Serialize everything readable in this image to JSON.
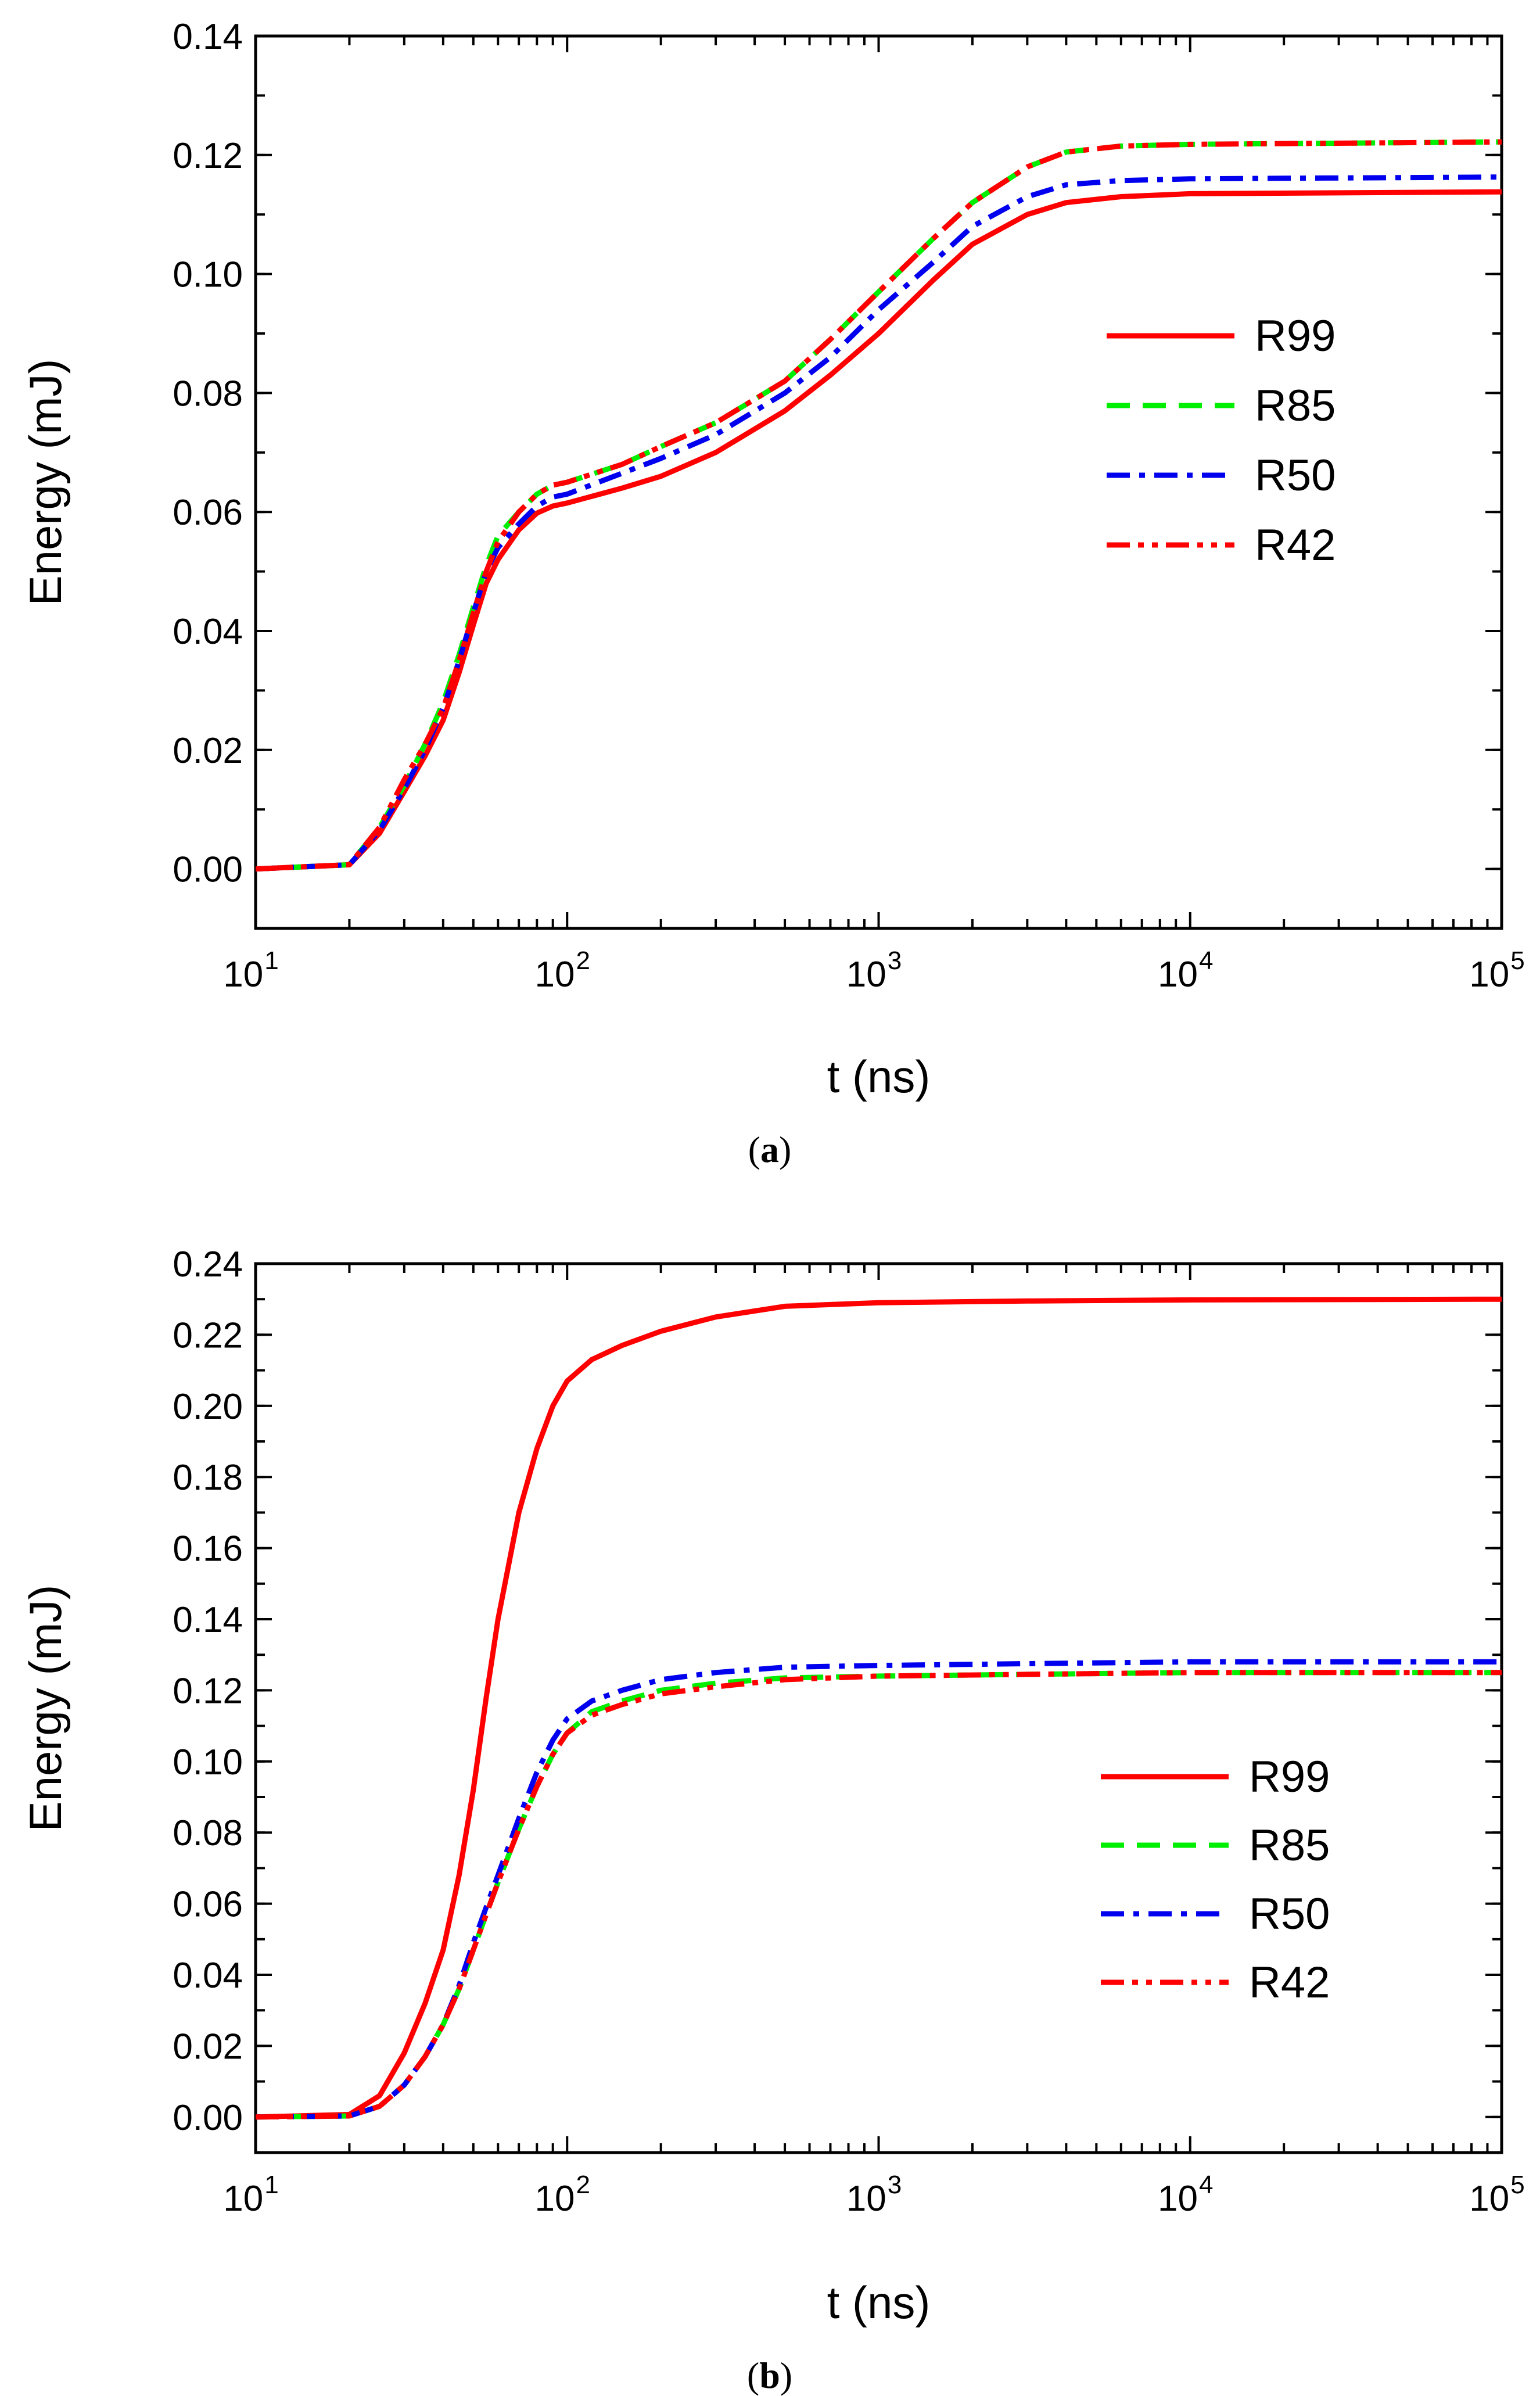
{
  "chart_data": [
    {
      "type": "line",
      "caption_letter": "a",
      "xlabel": "t (ns)",
      "ylabel": "Energy (mJ)",
      "xscale": "log",
      "xlim": [
        10,
        100000
      ],
      "ylim": [
        -0.01,
        0.14
      ],
      "xticks": [
        1,
        2,
        3,
        4,
        5
      ],
      "x_tick_base": "10",
      "yticks": [
        "0.00",
        "0.02",
        "0.04",
        "0.06",
        "0.08",
        "0.10",
        "0.12",
        "0.14"
      ],
      "legend_position": "right-middle",
      "series": [
        {
          "name": "R99",
          "color": "#ff0000",
          "style": "solid",
          "x": [
            10,
            20,
            25,
            30,
            35,
            40,
            45,
            50,
            55,
            60,
            70,
            80,
            90,
            100,
            150,
            200,
            300,
            500,
            700,
            1000,
            1500,
            2000,
            3000,
            4000,
            6000,
            10000,
            100000
          ],
          "y": [
            0.0,
            0.0007,
            0.006,
            0.013,
            0.019,
            0.025,
            0.033,
            0.041,
            0.048,
            0.052,
            0.057,
            0.0598,
            0.061,
            0.0615,
            0.064,
            0.066,
            0.07,
            0.077,
            0.083,
            0.09,
            0.099,
            0.105,
            0.11,
            0.112,
            0.113,
            0.1135,
            0.1138
          ]
        },
        {
          "name": "R85",
          "color": "#00ee00",
          "style": "dashed",
          "x": [
            10,
            20,
            25,
            30,
            35,
            40,
            45,
            50,
            55,
            60,
            70,
            80,
            90,
            100,
            150,
            200,
            300,
            500,
            700,
            1000,
            1500,
            2000,
            3000,
            4000,
            6000,
            10000,
            100000
          ],
          "y": [
            0.0,
            0.0007,
            0.007,
            0.014,
            0.021,
            0.028,
            0.036,
            0.044,
            0.051,
            0.056,
            0.06,
            0.063,
            0.0645,
            0.065,
            0.068,
            0.071,
            0.075,
            0.082,
            0.089,
            0.097,
            0.106,
            0.112,
            0.118,
            0.1205,
            0.1215,
            0.1218,
            0.1222
          ]
        },
        {
          "name": "R50",
          "color": "#0000ee",
          "style": "dashdot",
          "x": [
            10,
            20,
            25,
            30,
            35,
            40,
            45,
            50,
            55,
            60,
            70,
            80,
            90,
            100,
            150,
            200,
            300,
            500,
            700,
            1000,
            1500,
            2000,
            3000,
            4000,
            6000,
            10000,
            100000
          ],
          "y": [
            0.0,
            0.0007,
            0.0065,
            0.0135,
            0.02,
            0.027,
            0.035,
            0.043,
            0.05,
            0.054,
            0.058,
            0.061,
            0.0625,
            0.063,
            0.0665,
            0.069,
            0.073,
            0.08,
            0.086,
            0.094,
            0.102,
            0.108,
            0.113,
            0.115,
            0.1157,
            0.116,
            0.1163
          ]
        },
        {
          "name": "R42",
          "color": "#ff0000",
          "style": "dashdotdot",
          "x": [
            10,
            20,
            25,
            30,
            35,
            40,
            45,
            50,
            55,
            60,
            70,
            80,
            90,
            100,
            150,
            200,
            300,
            500,
            700,
            1000,
            1500,
            2000,
            3000,
            4000,
            6000,
            10000,
            100000
          ],
          "y": [
            0.0,
            0.0007,
            0.007,
            0.015,
            0.021,
            0.027,
            0.035,
            0.043,
            0.05,
            0.055,
            0.06,
            0.063,
            0.0645,
            0.065,
            0.068,
            0.071,
            0.075,
            0.082,
            0.089,
            0.097,
            0.106,
            0.112,
            0.118,
            0.1205,
            0.1215,
            0.1218,
            0.1222
          ]
        }
      ]
    },
    {
      "type": "line",
      "caption_letter": "b",
      "xlabel": "t (ns)",
      "ylabel": "Energy (mJ)",
      "xscale": "log",
      "xlim": [
        10,
        100000
      ],
      "ylim": [
        -0.01,
        0.24
      ],
      "xticks": [
        1,
        2,
        3,
        4,
        5
      ],
      "x_tick_base": "10",
      "yticks": [
        "0.00",
        "0.02",
        "0.04",
        "0.06",
        "0.08",
        "0.10",
        "0.12",
        "0.14",
        "0.16",
        "0.18",
        "0.20",
        "0.22",
        "0.24"
      ],
      "legend_position": "right-lower",
      "series": [
        {
          "name": "R99",
          "color": "#ff0000",
          "style": "solid",
          "x": [
            10,
            20,
            25,
            30,
            35,
            40,
            45,
            50,
            55,
            60,
            70,
            80,
            90,
            100,
            120,
            150,
            200,
            300,
            500,
            1000,
            3000,
            10000,
            100000
          ],
          "y": [
            0.0,
            0.0007,
            0.006,
            0.018,
            0.032,
            0.047,
            0.068,
            0.092,
            0.118,
            0.14,
            0.17,
            0.188,
            0.2,
            0.207,
            0.213,
            0.217,
            0.221,
            0.225,
            0.228,
            0.229,
            0.2295,
            0.2298,
            0.23
          ]
        },
        {
          "name": "R85",
          "color": "#00ee00",
          "style": "dashed",
          "x": [
            10,
            20,
            25,
            30,
            35,
            40,
            45,
            50,
            55,
            60,
            70,
            80,
            90,
            100,
            120,
            150,
            200,
            300,
            500,
            1000,
            3000,
            10000,
            100000
          ],
          "y": [
            0.0,
            0.0003,
            0.003,
            0.009,
            0.017,
            0.026,
            0.036,
            0.047,
            0.057,
            0.066,
            0.081,
            0.093,
            0.102,
            0.108,
            0.114,
            0.117,
            0.12,
            0.122,
            0.1235,
            0.124,
            0.1245,
            0.125,
            0.125
          ]
        },
        {
          "name": "R50",
          "color": "#0000ee",
          "style": "dashdot",
          "x": [
            10,
            20,
            25,
            30,
            35,
            40,
            45,
            50,
            55,
            60,
            70,
            80,
            90,
            100,
            120,
            150,
            200,
            300,
            500,
            1000,
            3000,
            10000,
            100000
          ],
          "y": [
            0.0,
            0.0003,
            0.003,
            0.009,
            0.017,
            0.026,
            0.037,
            0.049,
            0.059,
            0.068,
            0.084,
            0.097,
            0.106,
            0.112,
            0.117,
            0.12,
            0.123,
            0.125,
            0.1265,
            0.127,
            0.1275,
            0.128,
            0.128
          ]
        },
        {
          "name": "R42",
          "color": "#ff0000",
          "style": "dashdotdot",
          "x": [
            10,
            20,
            25,
            30,
            35,
            40,
            45,
            50,
            55,
            60,
            70,
            80,
            90,
            100,
            120,
            150,
            200,
            300,
            500,
            1000,
            3000,
            10000,
            100000
          ],
          "y": [
            0.0,
            0.0003,
            0.003,
            0.009,
            0.017,
            0.026,
            0.036,
            0.047,
            0.057,
            0.066,
            0.081,
            0.093,
            0.102,
            0.108,
            0.113,
            0.116,
            0.119,
            0.121,
            0.123,
            0.124,
            0.1245,
            0.125,
            0.125
          ]
        }
      ]
    }
  ]
}
